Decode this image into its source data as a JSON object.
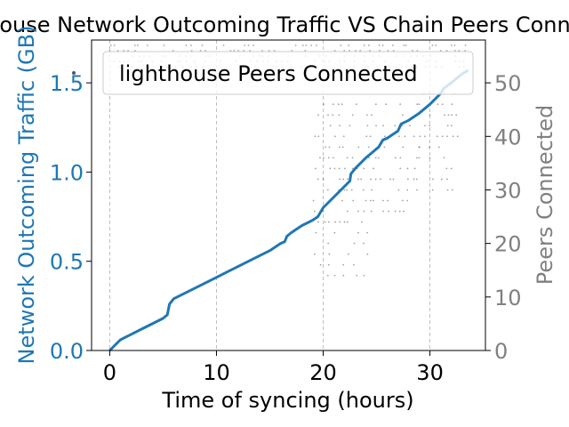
{
  "chart_data": {
    "type": "line",
    "title": "lighthouse Network Outcoming Traffic VS Chain Peers Connected",
    "xlabel": "Time of syncing (hours)",
    "ylabel_left": "Network Outcoming Traffic (GB)",
    "ylabel_right": "Peers Connected",
    "xlim": [
      -1.7,
      35.2
    ],
    "ylim_left": [
      0,
      1.74
    ],
    "ylim_right": [
      0,
      58
    ],
    "x_ticks": [
      0,
      10,
      20,
      30
    ],
    "y_ticks_left": [
      0.0,
      0.5,
      1.0,
      1.5
    ],
    "y_ticks_left_labels": [
      "0.0",
      "0.5",
      "1.0",
      "1.5"
    ],
    "y_ticks_right": [
      0,
      10,
      20,
      30,
      40,
      50
    ],
    "grid": "vertical-dashed",
    "legend": {
      "position": "top-right",
      "entries": [
        "lighthouse Peers Connected"
      ]
    },
    "colors": {
      "traffic": "#1f77b4",
      "peers_axis": "#808080",
      "scatter": "#555555",
      "grid": "#b0b0b0"
    },
    "series": [
      {
        "axis": "left",
        "style": "line",
        "x": [
          0,
          1,
          2,
          3,
          4,
          5,
          5.4,
          5.6,
          6,
          7,
          8,
          9,
          10,
          11,
          12,
          13,
          14,
          15,
          16,
          16.4,
          16.6,
          17,
          18,
          19,
          19.5,
          20,
          21,
          22,
          22.5,
          22.6,
          23,
          24,
          24.6,
          25.2,
          25.6,
          26,
          27,
          27.3,
          28,
          29,
          30,
          31,
          31.3,
          32,
          33,
          33.6
        ],
        "y": [
          0,
          0.06,
          0.09,
          0.12,
          0.15,
          0.18,
          0.2,
          0.26,
          0.29,
          0.32,
          0.35,
          0.38,
          0.41,
          0.44,
          0.47,
          0.5,
          0.53,
          0.56,
          0.6,
          0.61,
          0.64,
          0.66,
          0.7,
          0.73,
          0.75,
          0.8,
          0.86,
          0.92,
          0.95,
          0.99,
          1.02,
          1.08,
          1.11,
          1.14,
          1.18,
          1.19,
          1.23,
          1.27,
          1.29,
          1.33,
          1.38,
          1.44,
          1.47,
          1.5,
          1.55,
          1.57
        ]
      },
      {
        "name": "lighthouse Peers Connected",
        "axis": "right",
        "style": "scatter",
        "bands": [
          {
            "x_range": [
              0,
              33.6
            ],
            "values": [
              53,
              54,
              55,
              56,
              57
            ]
          },
          {
            "x_range": [
              19.2,
              24.4
            ],
            "values": [
              14,
              16,
              18,
              20,
              22,
              24,
              26,
              28,
              30,
              32,
              34,
              36,
              38,
              40,
              42,
              44,
              46
            ]
          },
          {
            "x_range": [
              24.4,
              29.0
            ],
            "values": [
              26,
              28,
              30,
              32,
              34,
              36,
              38,
              40,
              42,
              44,
              46
            ]
          },
          {
            "x_range": [
              29.0,
              32.6
            ],
            "values": [
              30,
              32,
              34,
              36,
              38,
              40,
              42,
              44,
              46,
              48
            ]
          }
        ]
      }
    ]
  }
}
